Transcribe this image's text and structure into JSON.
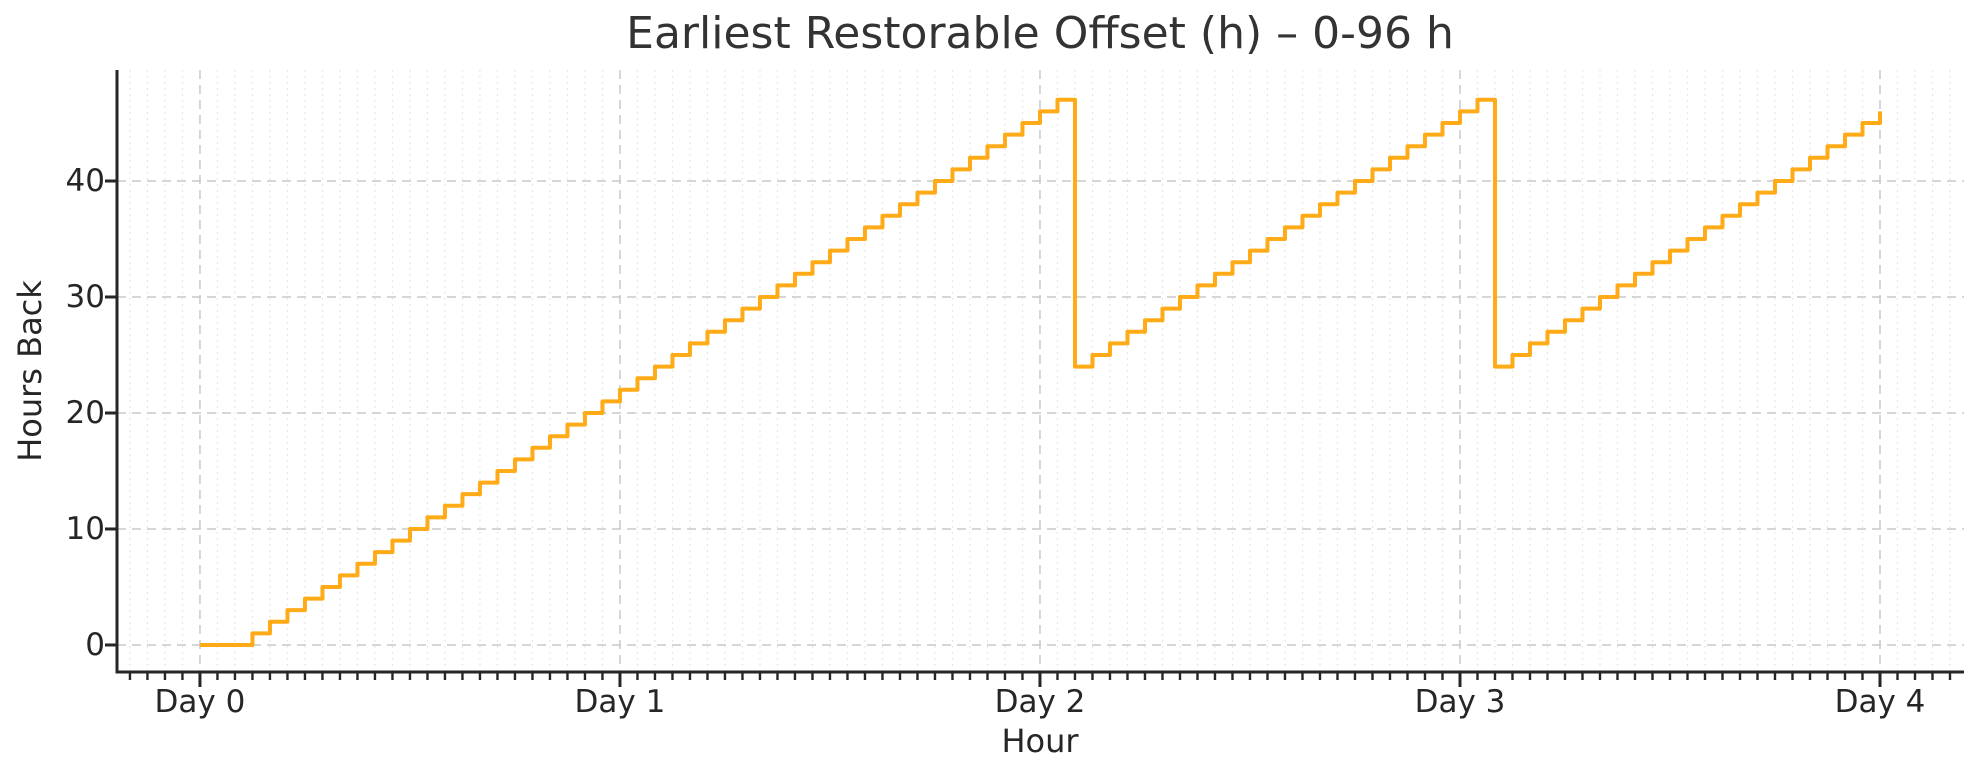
{
  "figure": {
    "background": "#ffffff"
  },
  "chart_data": {
    "type": "line",
    "subtype": "step-post",
    "title": "Earliest Restorable Offset (h) – 0-96 h",
    "xlabel": "Hour",
    "ylabel": "Hours Back",
    "line_color": "#ffab17",
    "line_width": 4,
    "grid": {
      "major_color": "#c9c9c9",
      "major_style": "dashed",
      "minor_color": "#e0e0e0",
      "minor_style": "dotted",
      "minor_x_every_hours": 1
    },
    "axis_color": "#262626",
    "xlim": [
      -4.74,
      100.8
    ],
    "ylim": [
      -2.33,
      49.57
    ],
    "x_ticks": {
      "hours": [
        0,
        24,
        48,
        72,
        96
      ],
      "labels": [
        "Day 0",
        "Day 1",
        "Day 2",
        "Day 3",
        "Day 4"
      ]
    },
    "y_ticks": {
      "values": [
        0,
        10,
        20,
        30,
        40
      ],
      "labels": [
        "0",
        "10",
        "20",
        "30",
        "40"
      ]
    },
    "x": [
      0,
      1,
      2,
      3,
      4,
      5,
      6,
      7,
      8,
      9,
      10,
      11,
      12,
      13,
      14,
      15,
      16,
      17,
      18,
      19,
      20,
      21,
      22,
      23,
      24,
      25,
      26,
      27,
      28,
      29,
      30,
      31,
      32,
      33,
      34,
      35,
      36,
      37,
      38,
      39,
      40,
      41,
      42,
      43,
      44,
      45,
      46,
      47,
      48,
      49,
      50,
      51,
      52,
      53,
      54,
      55,
      56,
      57,
      58,
      59,
      60,
      61,
      62,
      63,
      64,
      65,
      66,
      67,
      68,
      69,
      70,
      71,
      72,
      73,
      74,
      75,
      76,
      77,
      78,
      79,
      80,
      81,
      82,
      83,
      84,
      85,
      86,
      87,
      88,
      89,
      90,
      91,
      92,
      93,
      94,
      95,
      96
    ],
    "values": [
      0,
      0,
      0,
      1,
      2,
      3,
      4,
      5,
      6,
      7,
      8,
      9,
      10,
      11,
      12,
      13,
      14,
      15,
      16,
      17,
      18,
      19,
      20,
      21,
      22,
      23,
      24,
      25,
      26,
      27,
      28,
      29,
      30,
      31,
      32,
      33,
      34,
      35,
      36,
      37,
      38,
      39,
      40,
      41,
      42,
      43,
      44,
      45,
      46,
      47,
      24,
      25,
      26,
      27,
      28,
      29,
      30,
      31,
      32,
      33,
      34,
      35,
      36,
      37,
      38,
      39,
      40,
      41,
      42,
      43,
      44,
      45,
      46,
      47,
      24,
      25,
      26,
      27,
      28,
      29,
      30,
      31,
      32,
      33,
      34,
      35,
      36,
      37,
      38,
      39,
      40,
      41,
      42,
      43,
      44,
      45,
      46
    ]
  }
}
